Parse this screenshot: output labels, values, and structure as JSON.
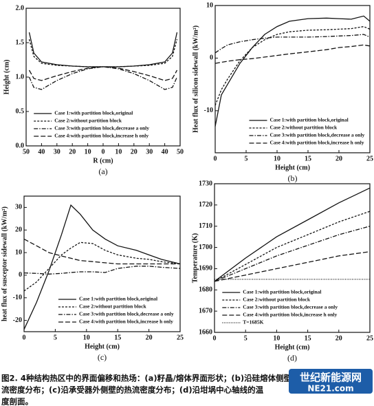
{
  "chart_data": [
    {
      "type": "line",
      "panel": "(a)",
      "xlabel": "R (cm)",
      "ylabel": "Height (cm)",
      "x": [
        -48,
        -45,
        -40,
        -30,
        -20,
        -10,
        0,
        10,
        20,
        30,
        40,
        45,
        48
      ],
      "xlim": [
        -50,
        50
      ],
      "xticks": [
        {
          "value": -50,
          "label": "50"
        },
        {
          "value": -40,
          "label": "40"
        },
        {
          "value": -30,
          "label": "30"
        },
        {
          "value": -20,
          "label": "20"
        },
        {
          "value": -10,
          "label": "10"
        },
        0,
        10,
        20,
        30,
        40,
        50
      ],
      "ylim": [
        0,
        2
      ],
      "yticks": [
        {
          "value": 0,
          "label": "0.0"
        },
        {
          "value": 0.5,
          "label": "0.5"
        },
        {
          "value": 1,
          "label": "1.0"
        },
        {
          "value": 1.5,
          "label": "1.5"
        },
        {
          "value": 2,
          "label": "2.0"
        }
      ],
      "legend": "lower center",
      "series": [
        {
          "name": "Case 1:with partition block,original",
          "color": "#111111",
          "dash": "none",
          "values": [
            1.65,
            1.35,
            1.22,
            1.18,
            1.16,
            1.15,
            1.15,
            1.15,
            1.16,
            1.18,
            1.22,
            1.35,
            1.65
          ]
        },
        {
          "name": "Case 2:without partition block",
          "color": "#111111",
          "dash": "3 2",
          "values": [
            1.55,
            1.3,
            1.2,
            1.17,
            1.16,
            1.15,
            1.15,
            1.15,
            1.16,
            1.17,
            1.2,
            1.3,
            1.55
          ]
        },
        {
          "name": "Case 3:with partition block,decrease a only",
          "color": "#111111",
          "dash": "6 2 1.5 2",
          "values": [
            1.0,
            0.85,
            0.82,
            0.95,
            1.05,
            1.12,
            1.15,
            1.12,
            1.05,
            0.95,
            0.82,
            0.85,
            1.0
          ]
        },
        {
          "name": "Case 4:with partition block,increase h only",
          "color": "#111111",
          "dash": "7 3",
          "values": [
            1.1,
            0.98,
            0.95,
            1.02,
            1.08,
            1.13,
            1.15,
            1.13,
            1.08,
            1.02,
            0.95,
            0.98,
            1.1
          ]
        }
      ]
    },
    {
      "type": "line",
      "panel": "(b)",
      "xlabel": "Height (cm)",
      "ylabel": "Heat flux of silicon sidewall (kW/m²)",
      "x": [
        0,
        1,
        2,
        4,
        6,
        8,
        10,
        12,
        15,
        18,
        20,
        22,
        24,
        25
      ],
      "xlim": [
        0,
        25
      ],
      "xticks": [
        0,
        5,
        10,
        15,
        20,
        25
      ],
      "ylim": [
        -18,
        10
      ],
      "yticks": [
        -10,
        0,
        10
      ],
      "legend": "lower right",
      "series": [
        {
          "name": "Case 1:with partition block,original",
          "color": "#111111",
          "dash": "none",
          "values": [
            -13,
            -7,
            -5,
            -1,
            2,
            4.5,
            6,
            7,
            7.5,
            7.6,
            7.5,
            7.4,
            8,
            7
          ]
        },
        {
          "name": "Case 2:without partition block",
          "color": "#111111",
          "dash": "3 2",
          "values": [
            -9,
            -6,
            -4,
            -0.5,
            2,
            3.5,
            4.5,
            5,
            5.3,
            5.4,
            5.5,
            5.6,
            6,
            5.5
          ]
        },
        {
          "name": "Case 3:with partition block,decrease a only",
          "color": "#111111",
          "dash": "6 2 1.5 2",
          "values": [
            1,
            1.8,
            2.5,
            3.1,
            3.5,
            3.8,
            4,
            4,
            4,
            4.1,
            4.2,
            4.3,
            4.5,
            4
          ]
        },
        {
          "name": "Case 4:with partition block,increase h only",
          "color": "#111111",
          "dash": "7 3",
          "values": [
            -1,
            -0.8,
            -0.6,
            -0.3,
            -0.1,
            0.2,
            0.5,
            0.8,
            1.2,
            1.6,
            2,
            2.2,
            2.5,
            2.3
          ]
        }
      ]
    },
    {
      "type": "line",
      "panel": "(c)",
      "xlabel": "Height (cm)",
      "ylabel": "heat flux of susceptor sidewall (kW/m²)",
      "x": [
        0,
        2,
        4,
        6,
        7.5,
        9,
        11,
        13,
        15,
        18,
        20,
        22,
        25
      ],
      "xlim": [
        0,
        25
      ],
      "xticks": [
        0,
        5,
        10,
        15,
        20,
        25
      ],
      "ylim": [
        -25,
        35
      ],
      "yticks": [
        -20,
        -10,
        0,
        10,
        20,
        30
      ],
      "legend": "lower right",
      "series": [
        {
          "name": "Case 1:with partition block,original",
          "color": "#111111",
          "dash": "none",
          "values": [
            -24,
            -12,
            2,
            18,
            31,
            27,
            20,
            16,
            13,
            11,
            9,
            7,
            5
          ]
        },
        {
          "name": "Case 2:without partition block",
          "color": "#111111",
          "dash": "3 2",
          "values": [
            -7,
            -3,
            3,
            9,
            12,
            14.5,
            14,
            11,
            9,
            7.5,
            7,
            6,
            5
          ]
        },
        {
          "name": "Case 3:with partition block,decrease a only",
          "color": "#111111",
          "dash": "6 2 1.5 2",
          "values": [
            1,
            0.8,
            0.5,
            0.8,
            1.2,
            1.5,
            1.5,
            1.2,
            3,
            4,
            4,
            3.5,
            3
          ]
        },
        {
          "name": "Case 4:with partition block,increase h only",
          "color": "#111111",
          "dash": "7 3",
          "values": [
            16,
            13,
            10,
            8.5,
            7.5,
            6.5,
            6,
            5.5,
            5,
            5,
            5,
            5,
            5
          ]
        }
      ]
    },
    {
      "type": "line",
      "panel": "(d)",
      "xlabel": "Height (cm)",
      "ylabel": "Temperature (K)",
      "x": [
        0,
        5,
        10,
        15,
        20,
        25
      ],
      "xlim": [
        0,
        25
      ],
      "xticks": [
        0,
        5,
        10,
        15,
        20,
        25
      ],
      "ylim": [
        1660,
        1730
      ],
      "yticks": [
        1660,
        1670,
        1680,
        1690,
        1700,
        1710,
        1720,
        1730
      ],
      "legend": "lower center",
      "series": [
        {
          "name": "Case 1:with partition block,original",
          "color": "#111111",
          "dash": "none",
          "values": [
            1684,
            1695,
            1705,
            1713,
            1721,
            1728
          ]
        },
        {
          "name": "Case 2:without partition block",
          "color": "#111111",
          "dash": "3 2",
          "values": [
            1684,
            1692,
            1700,
            1706,
            1712,
            1717
          ]
        },
        {
          "name": "Case 3:with partition block,decrease a only",
          "color": "#111111",
          "dash": "6 2 1.5 2",
          "values": [
            1684,
            1690,
            1696,
            1701,
            1706,
            1710
          ]
        },
        {
          "name": "Case 4:with partition block,increase h only",
          "color": "#111111",
          "dash": "7 3",
          "values": [
            1684,
            1687,
            1690,
            1693,
            1696,
            1698
          ]
        },
        {
          "name": "T=1685K",
          "color": "#111111",
          "dash": "1 1.5",
          "values": [
            1685,
            1685,
            1685,
            1685,
            1685,
            1685
          ]
        }
      ]
    }
  ],
  "caption": [
    "图2. 4种结构热区中的界面偏移和热场：(a)籽晶/熔体界面形状；(b)沿硅熔体侧壁的热",
    "流密度分布；(c)沿承受器外侧壁的热流密度分布；(d)沿坩埚中心轴线的温",
    "度剖面。"
  ],
  "watermark": {
    "name": "世纪新能源网",
    "site": "NE21.com"
  }
}
